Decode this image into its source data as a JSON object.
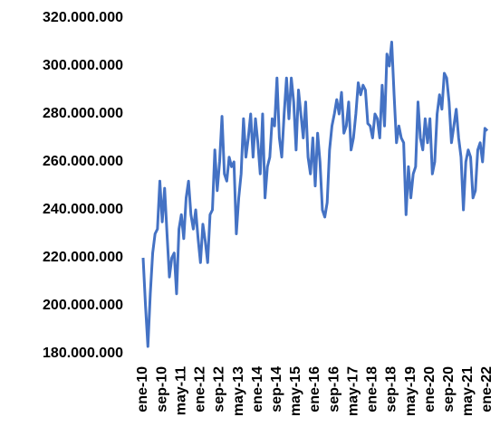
{
  "chart_data": {
    "type": "line",
    "color": "#4472c4",
    "categories": [
      "ene-10",
      null,
      null,
      null,
      null,
      null,
      null,
      null,
      "sep-10",
      null,
      null,
      null,
      null,
      null,
      null,
      null,
      "may-11",
      null,
      null,
      null,
      null,
      null,
      null,
      null,
      "ene-12",
      null,
      null,
      null,
      null,
      null,
      null,
      null,
      "sep-12",
      null,
      null,
      null,
      null,
      null,
      null,
      null,
      "may-13",
      null,
      null,
      null,
      null,
      null,
      null,
      null,
      "ene-14",
      null,
      null,
      null,
      null,
      null,
      null,
      null,
      "sep-14",
      null,
      null,
      null,
      null,
      null,
      null,
      null,
      "may-15",
      null,
      null,
      null,
      null,
      null,
      null,
      null,
      "ene-16",
      null,
      null,
      null,
      null,
      null,
      null,
      null,
      "sep-16",
      null,
      null,
      null,
      null,
      null,
      null,
      null,
      "may-17",
      null,
      null,
      null,
      null,
      null,
      null,
      null,
      "ene-18",
      null,
      null,
      null,
      null,
      null,
      null,
      null,
      "sep-18",
      null,
      null,
      null,
      null,
      null,
      null,
      null,
      "may-19",
      null,
      null,
      null,
      null,
      null,
      null,
      null,
      "ene-20",
      null,
      null,
      null,
      null,
      null,
      null,
      null,
      "sep-20",
      null,
      null,
      null,
      null,
      null,
      null,
      null,
      "may-21",
      null,
      null,
      null,
      null,
      null,
      null,
      null,
      "ene-22"
    ],
    "values": [
      220000000,
      200000000,
      183000000,
      205000000,
      222000000,
      230000000,
      232000000,
      252000000,
      235000000,
      249000000,
      230000000,
      212000000,
      220000000,
      222000000,
      205000000,
      232000000,
      238000000,
      228000000,
      245000000,
      252000000,
      238000000,
      232000000,
      240000000,
      228000000,
      218000000,
      234000000,
      227000000,
      218000000,
      238000000,
      240000000,
      265000000,
      248000000,
      260000000,
      279000000,
      255000000,
      252000000,
      262000000,
      258000000,
      260000000,
      230000000,
      245000000,
      255000000,
      278000000,
      262000000,
      270000000,
      280000000,
      262000000,
      278000000,
      268000000,
      255000000,
      280000000,
      245000000,
      258000000,
      262000000,
      278000000,
      275000000,
      295000000,
      270000000,
      262000000,
      280000000,
      295000000,
      278000000,
      295000000,
      285000000,
      265000000,
      290000000,
      280000000,
      270000000,
      285000000,
      262000000,
      255000000,
      270000000,
      250000000,
      272000000,
      260000000,
      240000000,
      237000000,
      243000000,
      265000000,
      275000000,
      280000000,
      286000000,
      280000000,
      289000000,
      272000000,
      275000000,
      285000000,
      265000000,
      270000000,
      280000000,
      293000000,
      288000000,
      292000000,
      290000000,
      276000000,
      275000000,
      270000000,
      280000000,
      278000000,
      270000000,
      292000000,
      275000000,
      305000000,
      300000000,
      310000000,
      288000000,
      268000000,
      275000000,
      270000000,
      268000000,
      238000000,
      258000000,
      245000000,
      255000000,
      258000000,
      285000000,
      270000000,
      265000000,
      278000000,
      268000000,
      278000000,
      255000000,
      260000000,
      280000000,
      288000000,
      282000000,
      297000000,
      295000000,
      285000000,
      268000000,
      275000000,
      282000000,
      270000000,
      262000000,
      240000000,
      260000000,
      265000000,
      262000000,
      245000000,
      248000000,
      265000000,
      268000000,
      260000000,
      274000000,
      273000000
    ],
    "ylim": [
      180000000,
      320000000
    ],
    "yticks": [
      {
        "value": 180000000,
        "label": "180.000.000"
      },
      {
        "value": 200000000,
        "label": "200.000.000"
      },
      {
        "value": 220000000,
        "label": "220.000.000"
      },
      {
        "value": 240000000,
        "label": "240.000.000"
      },
      {
        "value": 260000000,
        "label": "260.000.000"
      },
      {
        "value": 280000000,
        "label": "280.000.000"
      },
      {
        "value": 300000000,
        "label": "300.000.000"
      },
      {
        "value": 320000000,
        "label": "320.000.000"
      }
    ],
    "grid": false
  }
}
